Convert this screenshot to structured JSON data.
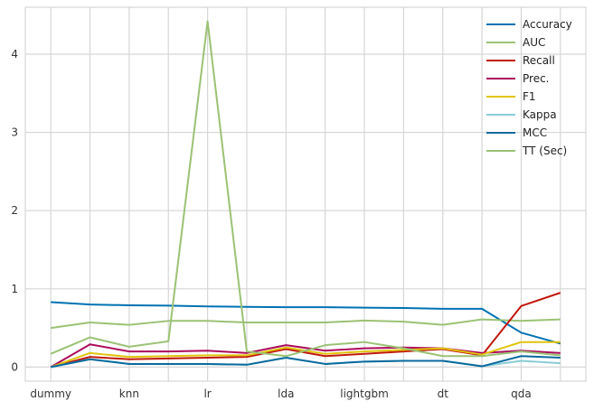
{
  "chart_data": {
    "type": "line",
    "title": "",
    "xlabel": "",
    "ylabel": "",
    "x_tick_labels": [
      "dummy",
      "knn",
      "lr",
      "lda",
      "lightgbm",
      "dt",
      "qda"
    ],
    "x_tick_positions": [
      0,
      2,
      4,
      6,
      8,
      10,
      12
    ],
    "x_points": [
      0,
      1,
      2,
      3,
      4,
      5,
      6,
      7,
      8,
      9,
      10,
      11,
      12,
      13
    ],
    "xlim": [
      -0.65,
      13.65
    ],
    "ylim": [
      -0.18,
      4.6
    ],
    "y_ticks": [
      0,
      1,
      2,
      3,
      4
    ],
    "grid": true,
    "legend_position": "top-right",
    "series": [
      {
        "name": "Accuracy",
        "color": "#0072B2",
        "values": [
          0.83,
          0.8,
          0.79,
          0.785,
          0.775,
          0.77,
          0.765,
          0.765,
          0.76,
          0.755,
          0.745,
          0.745,
          0.44,
          0.3
        ]
      },
      {
        "name": "AUC",
        "color": "#9BC275",
        "values": [
          0.5,
          0.57,
          0.54,
          0.59,
          0.59,
          0.57,
          0.57,
          0.57,
          0.595,
          0.58,
          0.54,
          0.61,
          0.59,
          0.61
        ]
      },
      {
        "name": "Recall",
        "color": "#C0190C",
        "values": [
          0.0,
          0.13,
          0.1,
          0.11,
          0.12,
          0.13,
          0.23,
          0.14,
          0.17,
          0.2,
          0.23,
          0.15,
          0.78,
          0.95
        ]
      },
      {
        "name": "Prec.",
        "color": "#AC0A5B",
        "values": [
          0.0,
          0.29,
          0.2,
          0.2,
          0.21,
          0.18,
          0.28,
          0.21,
          0.24,
          0.25,
          0.24,
          0.18,
          0.21,
          0.18
        ]
      },
      {
        "name": "F1",
        "color": "#E1C40E",
        "values": [
          0.0,
          0.18,
          0.13,
          0.14,
          0.15,
          0.15,
          0.25,
          0.17,
          0.2,
          0.22,
          0.24,
          0.16,
          0.32,
          0.32
        ]
      },
      {
        "name": "Kappa",
        "color": "#8ACCD6",
        "values": [
          0.0,
          0.1,
          0.04,
          0.04,
          0.04,
          0.03,
          0.12,
          0.04,
          0.07,
          0.08,
          0.08,
          0.01,
          0.08,
          0.05
        ]
      },
      {
        "name": "MCC",
        "color": "#0A6A9E",
        "values": [
          0.0,
          0.1,
          0.04,
          0.04,
          0.04,
          0.03,
          0.12,
          0.04,
          0.07,
          0.08,
          0.08,
          0.01,
          0.14,
          0.12
        ]
      },
      {
        "name": "TT (Sec)",
        "color": "#9BC275",
        "values": [
          0.17,
          0.38,
          0.26,
          0.33,
          4.42,
          0.2,
          0.14,
          0.28,
          0.32,
          0.24,
          0.14,
          0.14,
          0.2,
          0.15
        ]
      }
    ]
  }
}
